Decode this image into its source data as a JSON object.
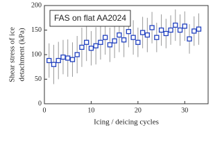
{
  "chart_data": {
    "type": "scatter",
    "annotation": "FAS on flat AA2024",
    "ylabel": [
      "Shear stress of ice",
      "detachment (kPa)"
    ],
    "xlabel": "Icing / deicing cycles",
    "x": [
      1,
      2,
      3,
      4,
      5,
      6,
      7,
      8,
      9,
      10,
      11,
      12,
      13,
      14,
      15,
      16,
      17,
      18,
      19,
      20,
      21,
      22,
      23,
      24,
      25,
      26,
      27,
      28,
      29,
      30,
      31,
      32,
      33
    ],
    "series": [
      {
        "color": "#1f3fbf",
        "error_color": "#999999",
        "values": [
          88,
          80,
          88,
          95,
          93,
          90,
          100,
          115,
          125,
          113,
          118,
          125,
          135,
          120,
          128,
          140,
          130,
          147,
          135,
          125,
          145,
          140,
          155,
          135,
          150,
          143,
          150,
          160,
          150,
          158,
          132,
          148,
          152
        ],
        "errors": [
          35,
          40,
          38,
          35,
          38,
          35,
          38,
          40,
          38,
          35,
          38,
          35,
          35,
          35,
          35,
          35,
          35,
          32,
          35,
          30,
          32,
          35,
          32,
          30,
          32,
          30,
          30,
          32,
          32,
          30,
          30,
          30,
          32
        ]
      }
    ],
    "xlim": [
      0,
      35
    ],
    "xticks": [
      0,
      10,
      20,
      30
    ],
    "ylim": [
      0,
      200
    ],
    "yticks": [
      0,
      50,
      100,
      150,
      200
    ]
  }
}
